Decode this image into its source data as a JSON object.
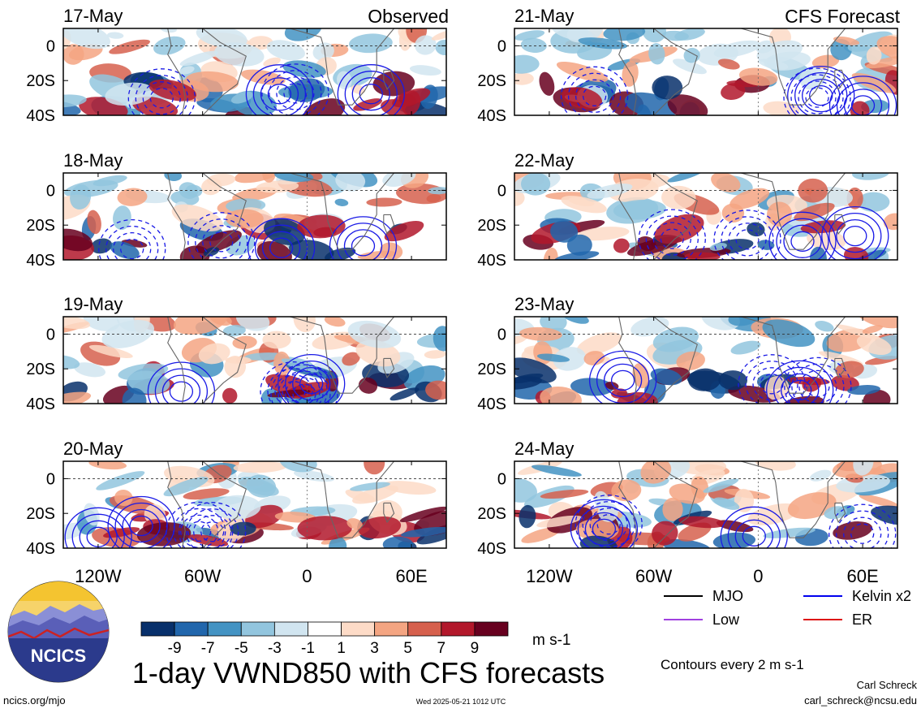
{
  "chart_data": {
    "type": "heatmap",
    "title": "1-day VWND850 with CFS forecasts",
    "units": "m s-1",
    "contour_note": "Contours every 2 m s-1",
    "column_labels": [
      "Observed",
      "CFS Forecast"
    ],
    "lon_ticks": [
      {
        "label": "120W",
        "lon": -120
      },
      {
        "label": "60W",
        "lon": -60
      },
      {
        "label": "0",
        "lon": 0
      },
      {
        "label": "60E",
        "lon": 60
      }
    ],
    "lon_range": [
      -140,
      80
    ],
    "lat_ticks": [
      {
        "label": "0",
        "lat": 0
      },
      {
        "label": "20S",
        "lat": -20
      },
      {
        "label": "40S",
        "lat": -40
      }
    ],
    "lat_range": [
      -40,
      10
    ],
    "colorbar": {
      "colors": [
        "#08306b",
        "#2166ac",
        "#4393c3",
        "#92c5de",
        "#d1e5f0",
        "#ffffff",
        "#fddbc7",
        "#f4a582",
        "#d6604d",
        "#b2182b",
        "#67001f"
      ],
      "labels": [
        "-9",
        "-7",
        "-5",
        "-3",
        "-1",
        "1",
        "3",
        "5",
        "7",
        "9"
      ]
    },
    "panels": [
      {
        "date": "17-May",
        "group": "Observed",
        "column": 0,
        "row": 0
      },
      {
        "date": "18-May",
        "group": "Observed",
        "column": 0,
        "row": 1
      },
      {
        "date": "19-May",
        "group": "Observed",
        "column": 0,
        "row": 2
      },
      {
        "date": "20-May",
        "group": "Observed",
        "column": 0,
        "row": 3
      },
      {
        "date": "21-May",
        "group": "CFS Forecast",
        "column": 1,
        "row": 0
      },
      {
        "date": "22-May",
        "group": "CFS Forecast",
        "column": 1,
        "row": 1
      },
      {
        "date": "23-May",
        "group": "CFS Forecast",
        "column": 1,
        "row": 2
      },
      {
        "date": "24-May",
        "group": "CFS Forecast",
        "column": 1,
        "row": 3
      }
    ],
    "legend": [
      {
        "name": "MJO",
        "color": "#000000",
        "style": "solid"
      },
      {
        "name": "Kelvin x2",
        "color": "#0000ee",
        "style": "solid"
      },
      {
        "name": "Low",
        "color": "#a040e0",
        "style": "solid"
      },
      {
        "name": "ER",
        "color": "#dd1111",
        "style": "solid"
      }
    ]
  },
  "logo": {
    "text": "NCICS"
  },
  "footer": {
    "url": "ncics.org/mjo",
    "timestamp": "Wed 2025-05-21 1012 UTC",
    "author": "Carl Schreck",
    "email": "carl_schreck@ncsu.edu"
  }
}
